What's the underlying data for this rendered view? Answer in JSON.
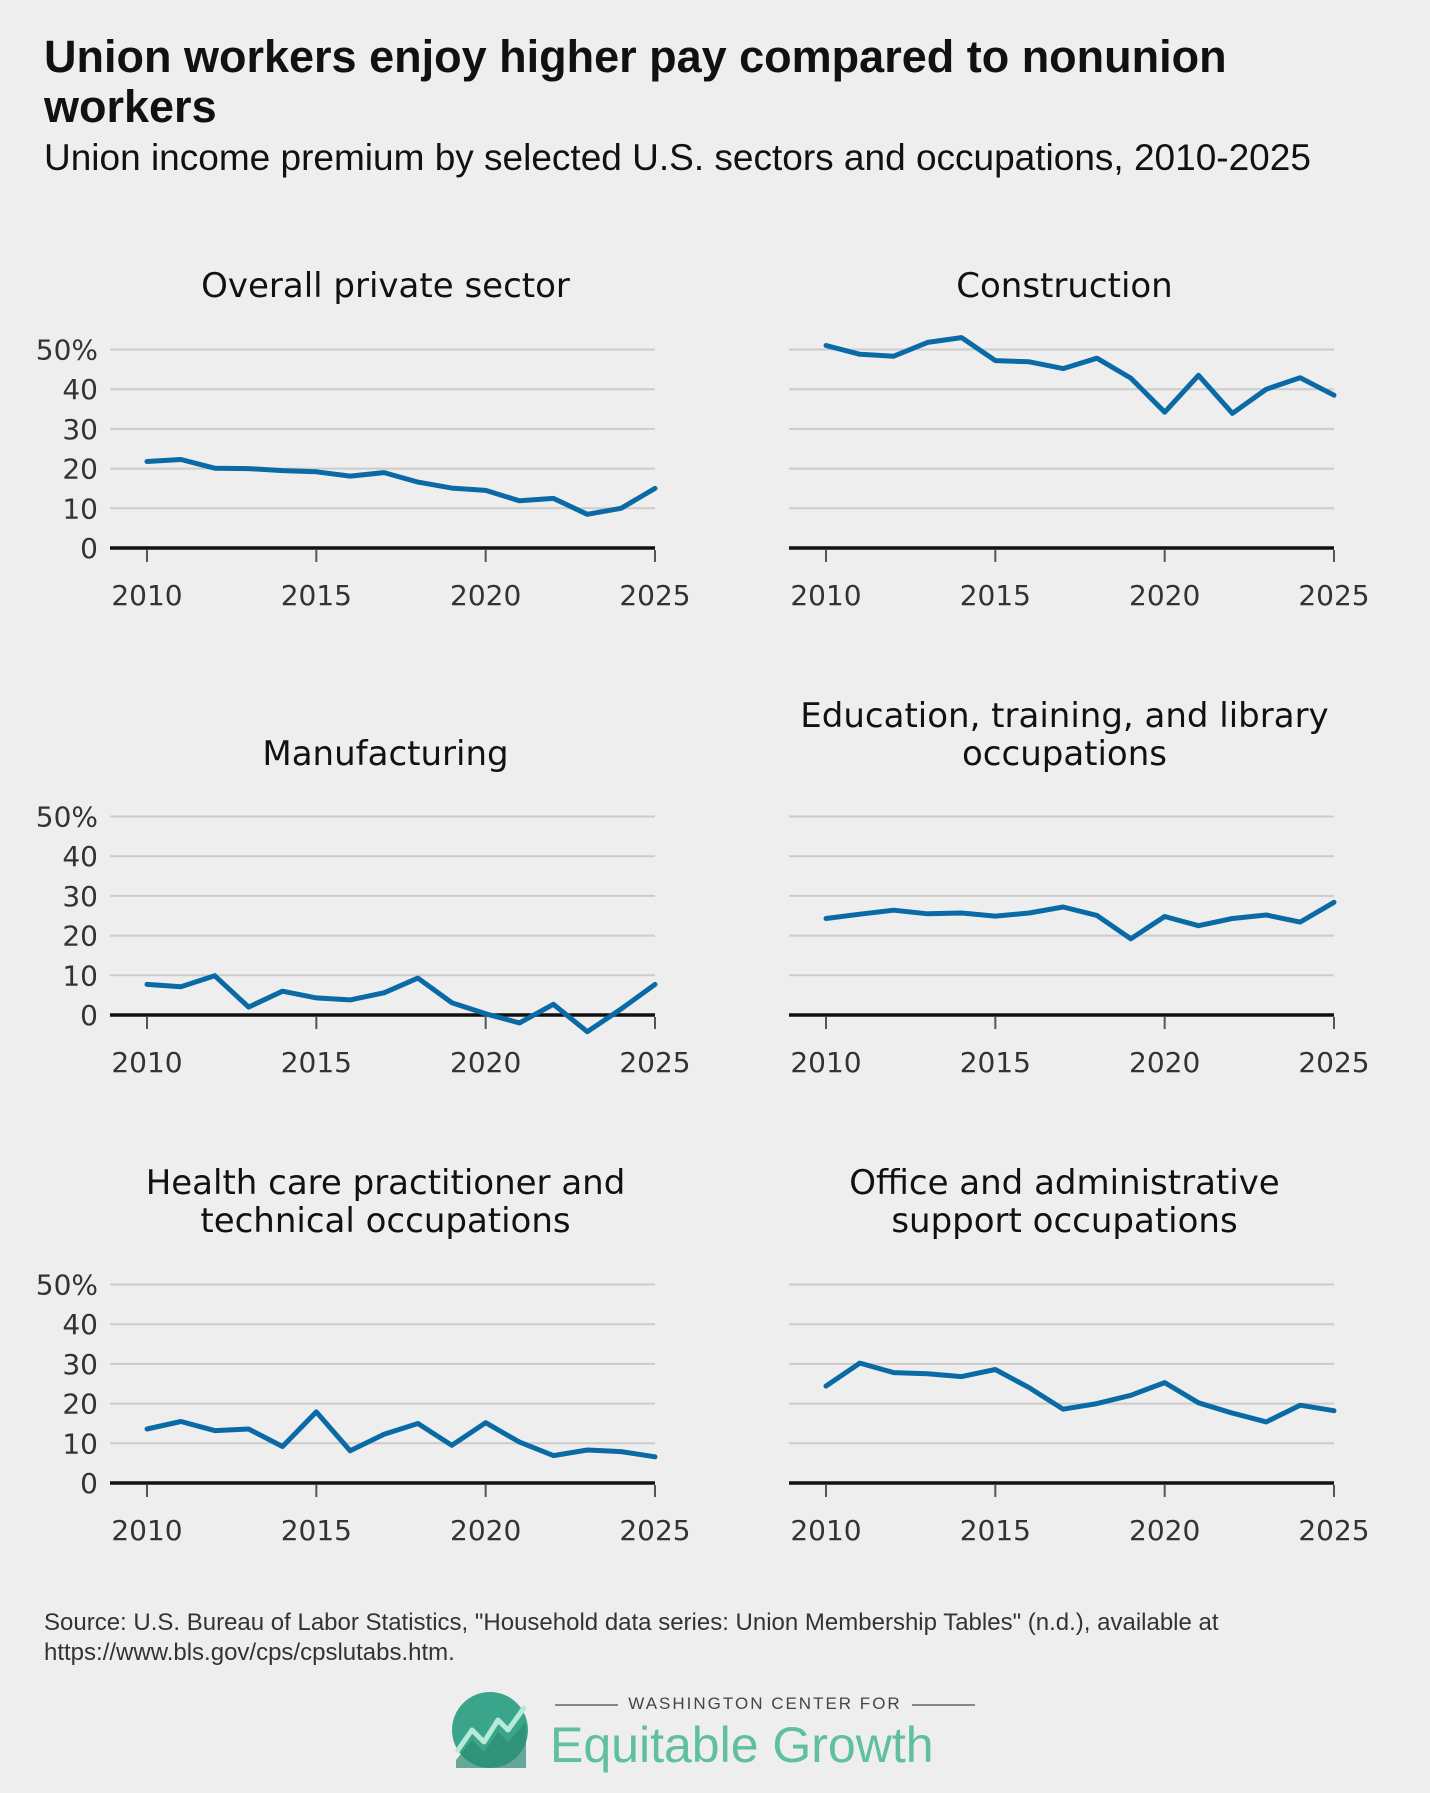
{
  "header": {
    "title": "Union workers enjoy higher pay compared to nonunion workers",
    "subtitle": "Union income premium by selected U.S. sectors and occupations, 2010-2025"
  },
  "footer": {
    "source": "Source: U.S. Bureau of Labor Statistics, \"Household data series: Union Membership Tables\" (n.d.), available at https://www.bls.gov/cps/cpslutabs.htm.",
    "logo_org": "WASHINGTON CENTER FOR",
    "logo_name": "Equitable Growth"
  },
  "colors": {
    "line": "#0a6aa6",
    "background": "#eeeeee",
    "logo": "#5fbf9f"
  },
  "chart_data": [
    {
      "type": "line",
      "title": [
        "Overall private sector"
      ],
      "x": [
        2010,
        2011,
        2012,
        2013,
        2014,
        2015,
        2016,
        2017,
        2018,
        2019,
        2020,
        2021,
        2022,
        2023,
        2024,
        2025
      ],
      "series": [
        {
          "values": [
            21.8,
            22.3,
            20.1,
            20,
            19.5,
            19.2,
            18.1,
            19,
            16.6,
            15.1,
            14.5,
            11.9,
            12.5,
            8.5,
            10,
            15
          ]
        }
      ],
      "xticks": [
        "2010",
        "2015",
        "2020",
        "2025"
      ],
      "yticks": [
        "50%",
        "40",
        "30",
        "20",
        "10",
        "0"
      ],
      "ylim": [
        0,
        50
      ],
      "grid": true,
      "show_yticks": true
    },
    {
      "type": "line",
      "title": [
        "Construction"
      ],
      "x": [
        2010,
        2011,
        2012,
        2013,
        2014,
        2015,
        2016,
        2017,
        2018,
        2019,
        2020,
        2021,
        2022,
        2023,
        2024,
        2025
      ],
      "series": [
        {
          "values": [
            51,
            48.8,
            48.3,
            51.8,
            53,
            47.2,
            46.9,
            45.2,
            47.8,
            42.8,
            34.2,
            43.5,
            33.9,
            40,
            42.9,
            38.5
          ]
        }
      ],
      "xticks": [
        "2010",
        "2015",
        "2020",
        "2025"
      ],
      "yticks": [
        "50%",
        "40",
        "30",
        "20",
        "10",
        "0"
      ],
      "ylim": [
        0,
        50
      ],
      "grid": true,
      "show_yticks": false
    },
    {
      "type": "line",
      "title": [
        "Manufacturing"
      ],
      "x": [
        2010,
        2011,
        2012,
        2013,
        2014,
        2015,
        2016,
        2017,
        2018,
        2019,
        2020,
        2021,
        2022,
        2023,
        2024,
        2025
      ],
      "series": [
        {
          "values": [
            7.7,
            7.1,
            9.9,
            2,
            6,
            4.3,
            3.8,
            5.6,
            9.3,
            3.1,
            0.3,
            -2,
            2.7,
            -4.2,
            1.5,
            7.7
          ]
        }
      ],
      "xticks": [
        "2010",
        "2015",
        "2020",
        "2025"
      ],
      "yticks": [
        "50%",
        "40",
        "30",
        "20",
        "10",
        "0"
      ],
      "ylim": [
        0,
        50
      ],
      "grid": true,
      "show_yticks": true
    },
    {
      "type": "line",
      "title": [
        "Education, training, and library",
        "occupations"
      ],
      "x": [
        2010,
        2011,
        2012,
        2013,
        2014,
        2015,
        2016,
        2017,
        2018,
        2019,
        2020,
        2021,
        2022,
        2023,
        2024,
        2025
      ],
      "series": [
        {
          "values": [
            24.3,
            25.4,
            26.4,
            25.5,
            25.7,
            24.9,
            25.7,
            27.2,
            25.1,
            19.2,
            24.8,
            22.5,
            24.3,
            25.2,
            23.4,
            28.4
          ]
        }
      ],
      "xticks": [
        "2010",
        "2015",
        "2020",
        "2025"
      ],
      "yticks": [
        "50%",
        "40",
        "30",
        "20",
        "10",
        "0"
      ],
      "ylim": [
        0,
        50
      ],
      "grid": true,
      "show_yticks": false
    },
    {
      "type": "line",
      "title": [
        "Health care practitioner and",
        "technical occupations"
      ],
      "x": [
        2010,
        2011,
        2012,
        2013,
        2014,
        2015,
        2016,
        2017,
        2018,
        2019,
        2020,
        2021,
        2022,
        2023,
        2024,
        2025
      ],
      "series": [
        {
          "values": [
            13.6,
            15.5,
            13.2,
            13.6,
            9.2,
            17.9,
            8.1,
            12.3,
            15,
            9.5,
            15.2,
            10.3,
            6.9,
            8.3,
            7.9,
            6.6
          ]
        }
      ],
      "xticks": [
        "2010",
        "2015",
        "2020",
        "2025"
      ],
      "yticks": [
        "50%",
        "40",
        "30",
        "20",
        "10",
        "0"
      ],
      "ylim": [
        0,
        50
      ],
      "grid": true,
      "show_yticks": true
    },
    {
      "type": "line",
      "title": [
        "Office and administrative",
        "support occupations"
      ],
      "x": [
        2010,
        2011,
        2012,
        2013,
        2014,
        2015,
        2016,
        2017,
        2018,
        2019,
        2020,
        2021,
        2022,
        2023,
        2024,
        2025
      ],
      "series": [
        {
          "values": [
            24.4,
            30.2,
            27.8,
            27.5,
            26.8,
            28.6,
            24,
            18.6,
            20,
            22.1,
            25.3,
            20.2,
            17.6,
            15.4,
            19.6,
            18.2
          ]
        }
      ],
      "xticks": [
        "2010",
        "2015",
        "2020",
        "2025"
      ],
      "yticks": [
        "50%",
        "40",
        "30",
        "20",
        "10",
        "0"
      ],
      "ylim": [
        0,
        50
      ],
      "grid": true,
      "show_yticks": false
    }
  ]
}
